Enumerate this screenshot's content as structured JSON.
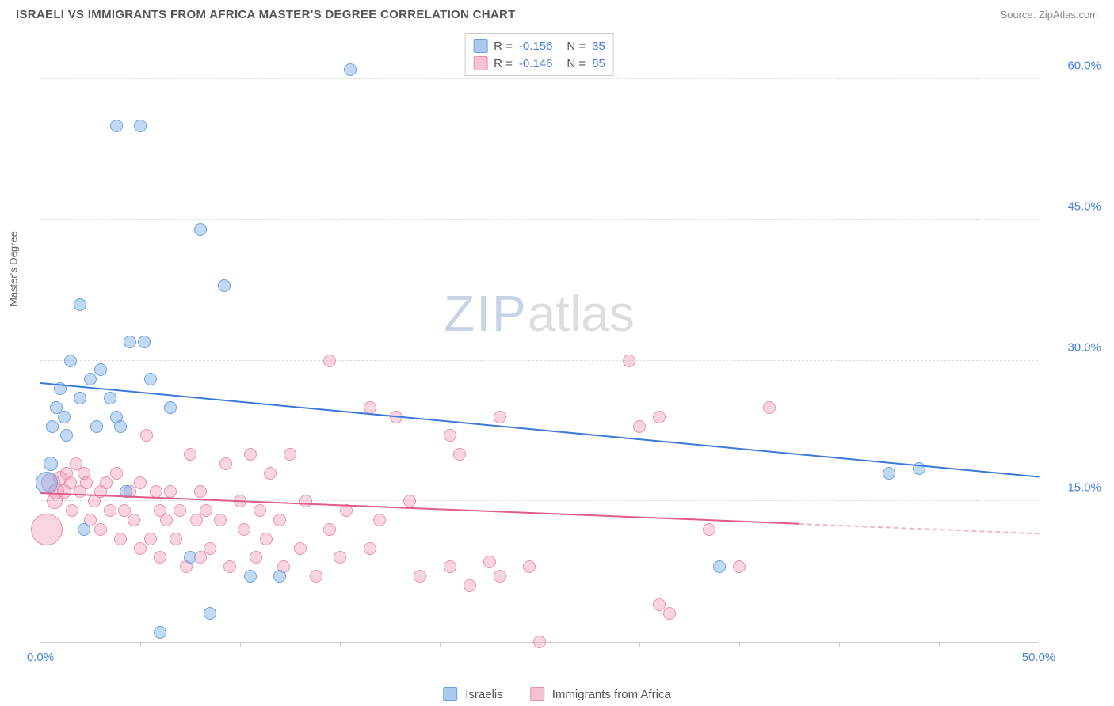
{
  "header": {
    "title": "ISRAELI VS IMMIGRANTS FROM AFRICA MASTER'S DEGREE CORRELATION CHART",
    "source": "Source: ZipAtlas.com"
  },
  "watermark": {
    "part1": "ZIP",
    "part2": "atlas"
  },
  "chart": {
    "type": "scatter",
    "xlim": [
      0,
      50
    ],
    "ylim": [
      0,
      65
    ],
    "x_axis_label_min": "0.0%",
    "x_axis_label_max": "50.0%",
    "y_axis_title": "Master's Degree",
    "y_gridlines": [
      {
        "value": 15,
        "label": "15.0%"
      },
      {
        "value": 30,
        "label": "30.0%"
      },
      {
        "value": 45,
        "label": "45.0%"
      },
      {
        "value": 60,
        "label": "60.0%"
      }
    ],
    "x_ticks": [
      5,
      10,
      15,
      20,
      25,
      30,
      35,
      40,
      45
    ],
    "grid_color": "#dddddd",
    "axis_color": "#cccccc",
    "tick_label_color": "#4a7fd8",
    "series": [
      {
        "id": "israelis",
        "label": "Israelis",
        "fill": "rgba(120,170,230,0.45)",
        "stroke": "#6aa0e0",
        "swatch_fill": "#a9c9ee",
        "swatch_border": "#6aa0e0",
        "legend": {
          "R": "-0.156",
          "N": "35"
        },
        "trend": {
          "x1": 0,
          "y1": 27.5,
          "x2": 50,
          "y2": 17.5,
          "color": "#3b78d8",
          "dash_from_x": 50
        },
        "points": [
          {
            "x": 0.3,
            "y": 17,
            "r": 14
          },
          {
            "x": 0.5,
            "y": 19,
            "r": 9
          },
          {
            "x": 0.6,
            "y": 23,
            "r": 8
          },
          {
            "x": 0.8,
            "y": 25,
            "r": 8
          },
          {
            "x": 1.0,
            "y": 27,
            "r": 8
          },
          {
            "x": 1.2,
            "y": 24,
            "r": 8
          },
          {
            "x": 1.3,
            "y": 22,
            "r": 8
          },
          {
            "x": 1.5,
            "y": 30,
            "r": 8
          },
          {
            "x": 2.0,
            "y": 36,
            "r": 8
          },
          {
            "x": 2.0,
            "y": 26,
            "r": 8
          },
          {
            "x": 2.2,
            "y": 12,
            "r": 8
          },
          {
            "x": 2.5,
            "y": 28,
            "r": 8
          },
          {
            "x": 2.8,
            "y": 23,
            "r": 8
          },
          {
            "x": 3.0,
            "y": 29,
            "r": 8
          },
          {
            "x": 3.5,
            "y": 26,
            "r": 8
          },
          {
            "x": 3.8,
            "y": 24,
            "r": 8
          },
          {
            "x": 3.8,
            "y": 55,
            "r": 8
          },
          {
            "x": 4.0,
            "y": 23,
            "r": 8
          },
          {
            "x": 4.3,
            "y": 16,
            "r": 8
          },
          {
            "x": 4.5,
            "y": 32,
            "r": 8
          },
          {
            "x": 5.0,
            "y": 55,
            "r": 8
          },
          {
            "x": 5.2,
            "y": 32,
            "r": 8
          },
          {
            "x": 5.5,
            "y": 28,
            "r": 8
          },
          {
            "x": 6.0,
            "y": 1,
            "r": 8
          },
          {
            "x": 6.5,
            "y": 25,
            "r": 8
          },
          {
            "x": 7.5,
            "y": 9,
            "r": 8
          },
          {
            "x": 8.0,
            "y": 44,
            "r": 8
          },
          {
            "x": 8.5,
            "y": 3,
            "r": 8
          },
          {
            "x": 9.2,
            "y": 38,
            "r": 8
          },
          {
            "x": 10.5,
            "y": 7,
            "r": 8
          },
          {
            "x": 12.0,
            "y": 7,
            "r": 8
          },
          {
            "x": 15.5,
            "y": 61,
            "r": 8
          },
          {
            "x": 34.0,
            "y": 8,
            "r": 8
          },
          {
            "x": 42.5,
            "y": 18,
            "r": 8
          },
          {
            "x": 44.0,
            "y": 18.5,
            "r": 8
          }
        ]
      },
      {
        "id": "africa",
        "label": "Immigrants from Africa",
        "fill": "rgba(240,150,180,0.40)",
        "stroke": "#e890b0",
        "swatch_fill": "#f5c1d3",
        "swatch_border": "#e890b0",
        "legend": {
          "R": "-0.146",
          "N": "85"
        },
        "trend": {
          "x1": 0,
          "y1": 15.8,
          "x2": 50,
          "y2": 11.5,
          "color": "#e05a8a",
          "dash_from_x": 38
        },
        "points": [
          {
            "x": 0.3,
            "y": 12,
            "r": 20
          },
          {
            "x": 0.5,
            "y": 17,
            "r": 12
          },
          {
            "x": 0.7,
            "y": 15,
            "r": 10
          },
          {
            "x": 0.8,
            "y": 16,
            "r": 10
          },
          {
            "x": 1.0,
            "y": 17.5,
            "r": 9
          },
          {
            "x": 1.2,
            "y": 16,
            "r": 9
          },
          {
            "x": 1.3,
            "y": 18,
            "r": 8
          },
          {
            "x": 1.5,
            "y": 17,
            "r": 8
          },
          {
            "x": 1.6,
            "y": 14,
            "r": 8
          },
          {
            "x": 1.8,
            "y": 19,
            "r": 8
          },
          {
            "x": 2.0,
            "y": 16,
            "r": 8
          },
          {
            "x": 2.2,
            "y": 18,
            "r": 8
          },
          {
            "x": 2.3,
            "y": 17,
            "r": 8
          },
          {
            "x": 2.5,
            "y": 13,
            "r": 8
          },
          {
            "x": 2.7,
            "y": 15,
            "r": 8
          },
          {
            "x": 3.0,
            "y": 16,
            "r": 8
          },
          {
            "x": 3.0,
            "y": 12,
            "r": 8
          },
          {
            "x": 3.3,
            "y": 17,
            "r": 8
          },
          {
            "x": 3.5,
            "y": 14,
            "r": 8
          },
          {
            "x": 3.8,
            "y": 18,
            "r": 8
          },
          {
            "x": 4.0,
            "y": 11,
            "r": 8
          },
          {
            "x": 4.2,
            "y": 14,
            "r": 8
          },
          {
            "x": 4.5,
            "y": 16,
            "r": 8
          },
          {
            "x": 4.7,
            "y": 13,
            "r": 8
          },
          {
            "x": 5.0,
            "y": 17,
            "r": 8
          },
          {
            "x": 5.0,
            "y": 10,
            "r": 8
          },
          {
            "x": 5.3,
            "y": 22,
            "r": 8
          },
          {
            "x": 5.5,
            "y": 11,
            "r": 8
          },
          {
            "x": 5.8,
            "y": 16,
            "r": 8
          },
          {
            "x": 6.0,
            "y": 14,
            "r": 8
          },
          {
            "x": 6.0,
            "y": 9,
            "r": 8
          },
          {
            "x": 6.3,
            "y": 13,
            "r": 8
          },
          {
            "x": 6.5,
            "y": 16,
            "r": 8
          },
          {
            "x": 6.8,
            "y": 11,
            "r": 8
          },
          {
            "x": 7.0,
            "y": 14,
            "r": 8
          },
          {
            "x": 7.3,
            "y": 8,
            "r": 8
          },
          {
            "x": 7.5,
            "y": 20,
            "r": 8
          },
          {
            "x": 7.8,
            "y": 13,
            "r": 8
          },
          {
            "x": 8.0,
            "y": 16,
            "r": 8
          },
          {
            "x": 8.0,
            "y": 9,
            "r": 8
          },
          {
            "x": 8.3,
            "y": 14,
            "r": 8
          },
          {
            "x": 8.5,
            "y": 10,
            "r": 8
          },
          {
            "x": 9.0,
            "y": 13,
            "r": 8
          },
          {
            "x": 9.3,
            "y": 19,
            "r": 8
          },
          {
            "x": 9.5,
            "y": 8,
            "r": 8
          },
          {
            "x": 10.0,
            "y": 15,
            "r": 8
          },
          {
            "x": 10.2,
            "y": 12,
            "r": 8
          },
          {
            "x": 10.5,
            "y": 20,
            "r": 8
          },
          {
            "x": 10.8,
            "y": 9,
            "r": 8
          },
          {
            "x": 11.0,
            "y": 14,
            "r": 8
          },
          {
            "x": 11.3,
            "y": 11,
            "r": 8
          },
          {
            "x": 11.5,
            "y": 18,
            "r": 8
          },
          {
            "x": 12.0,
            "y": 13,
            "r": 8
          },
          {
            "x": 12.2,
            "y": 8,
            "r": 8
          },
          {
            "x": 12.5,
            "y": 20,
            "r": 8
          },
          {
            "x": 13.0,
            "y": 10,
            "r": 8
          },
          {
            "x": 13.3,
            "y": 15,
            "r": 8
          },
          {
            "x": 13.8,
            "y": 7,
            "r": 8
          },
          {
            "x": 14.5,
            "y": 30,
            "r": 8
          },
          {
            "x": 14.5,
            "y": 12,
            "r": 8
          },
          {
            "x": 15.0,
            "y": 9,
            "r": 8
          },
          {
            "x": 15.3,
            "y": 14,
            "r": 8
          },
          {
            "x": 16.5,
            "y": 25,
            "r": 8
          },
          {
            "x": 16.5,
            "y": 10,
            "r": 8
          },
          {
            "x": 17.0,
            "y": 13,
            "r": 8
          },
          {
            "x": 17.8,
            "y": 24,
            "r": 8
          },
          {
            "x": 18.5,
            "y": 15,
            "r": 8
          },
          {
            "x": 19.0,
            "y": 7,
            "r": 8
          },
          {
            "x": 20.5,
            "y": 22,
            "r": 8
          },
          {
            "x": 20.5,
            "y": 8,
            "r": 8
          },
          {
            "x": 21.0,
            "y": 20,
            "r": 8
          },
          {
            "x": 21.5,
            "y": 6,
            "r": 8
          },
          {
            "x": 22.5,
            "y": 8.5,
            "r": 8
          },
          {
            "x": 23.0,
            "y": 24,
            "r": 8
          },
          {
            "x": 23.0,
            "y": 7,
            "r": 8
          },
          {
            "x": 24.5,
            "y": 8,
            "r": 8
          },
          {
            "x": 25.0,
            "y": 0,
            "r": 8
          },
          {
            "x": 29.5,
            "y": 30,
            "r": 8
          },
          {
            "x": 30.0,
            "y": 23,
            "r": 8
          },
          {
            "x": 31.0,
            "y": 4,
            "r": 8
          },
          {
            "x": 31.0,
            "y": 24,
            "r": 8
          },
          {
            "x": 31.5,
            "y": 3,
            "r": 8
          },
          {
            "x": 33.5,
            "y": 12,
            "r": 8
          },
          {
            "x": 35.0,
            "y": 8,
            "r": 8
          },
          {
            "x": 36.5,
            "y": 25,
            "r": 8
          }
        ]
      }
    ]
  },
  "legend_bottom": {
    "s1": "Israelis",
    "s2": "Immigrants from Africa"
  }
}
